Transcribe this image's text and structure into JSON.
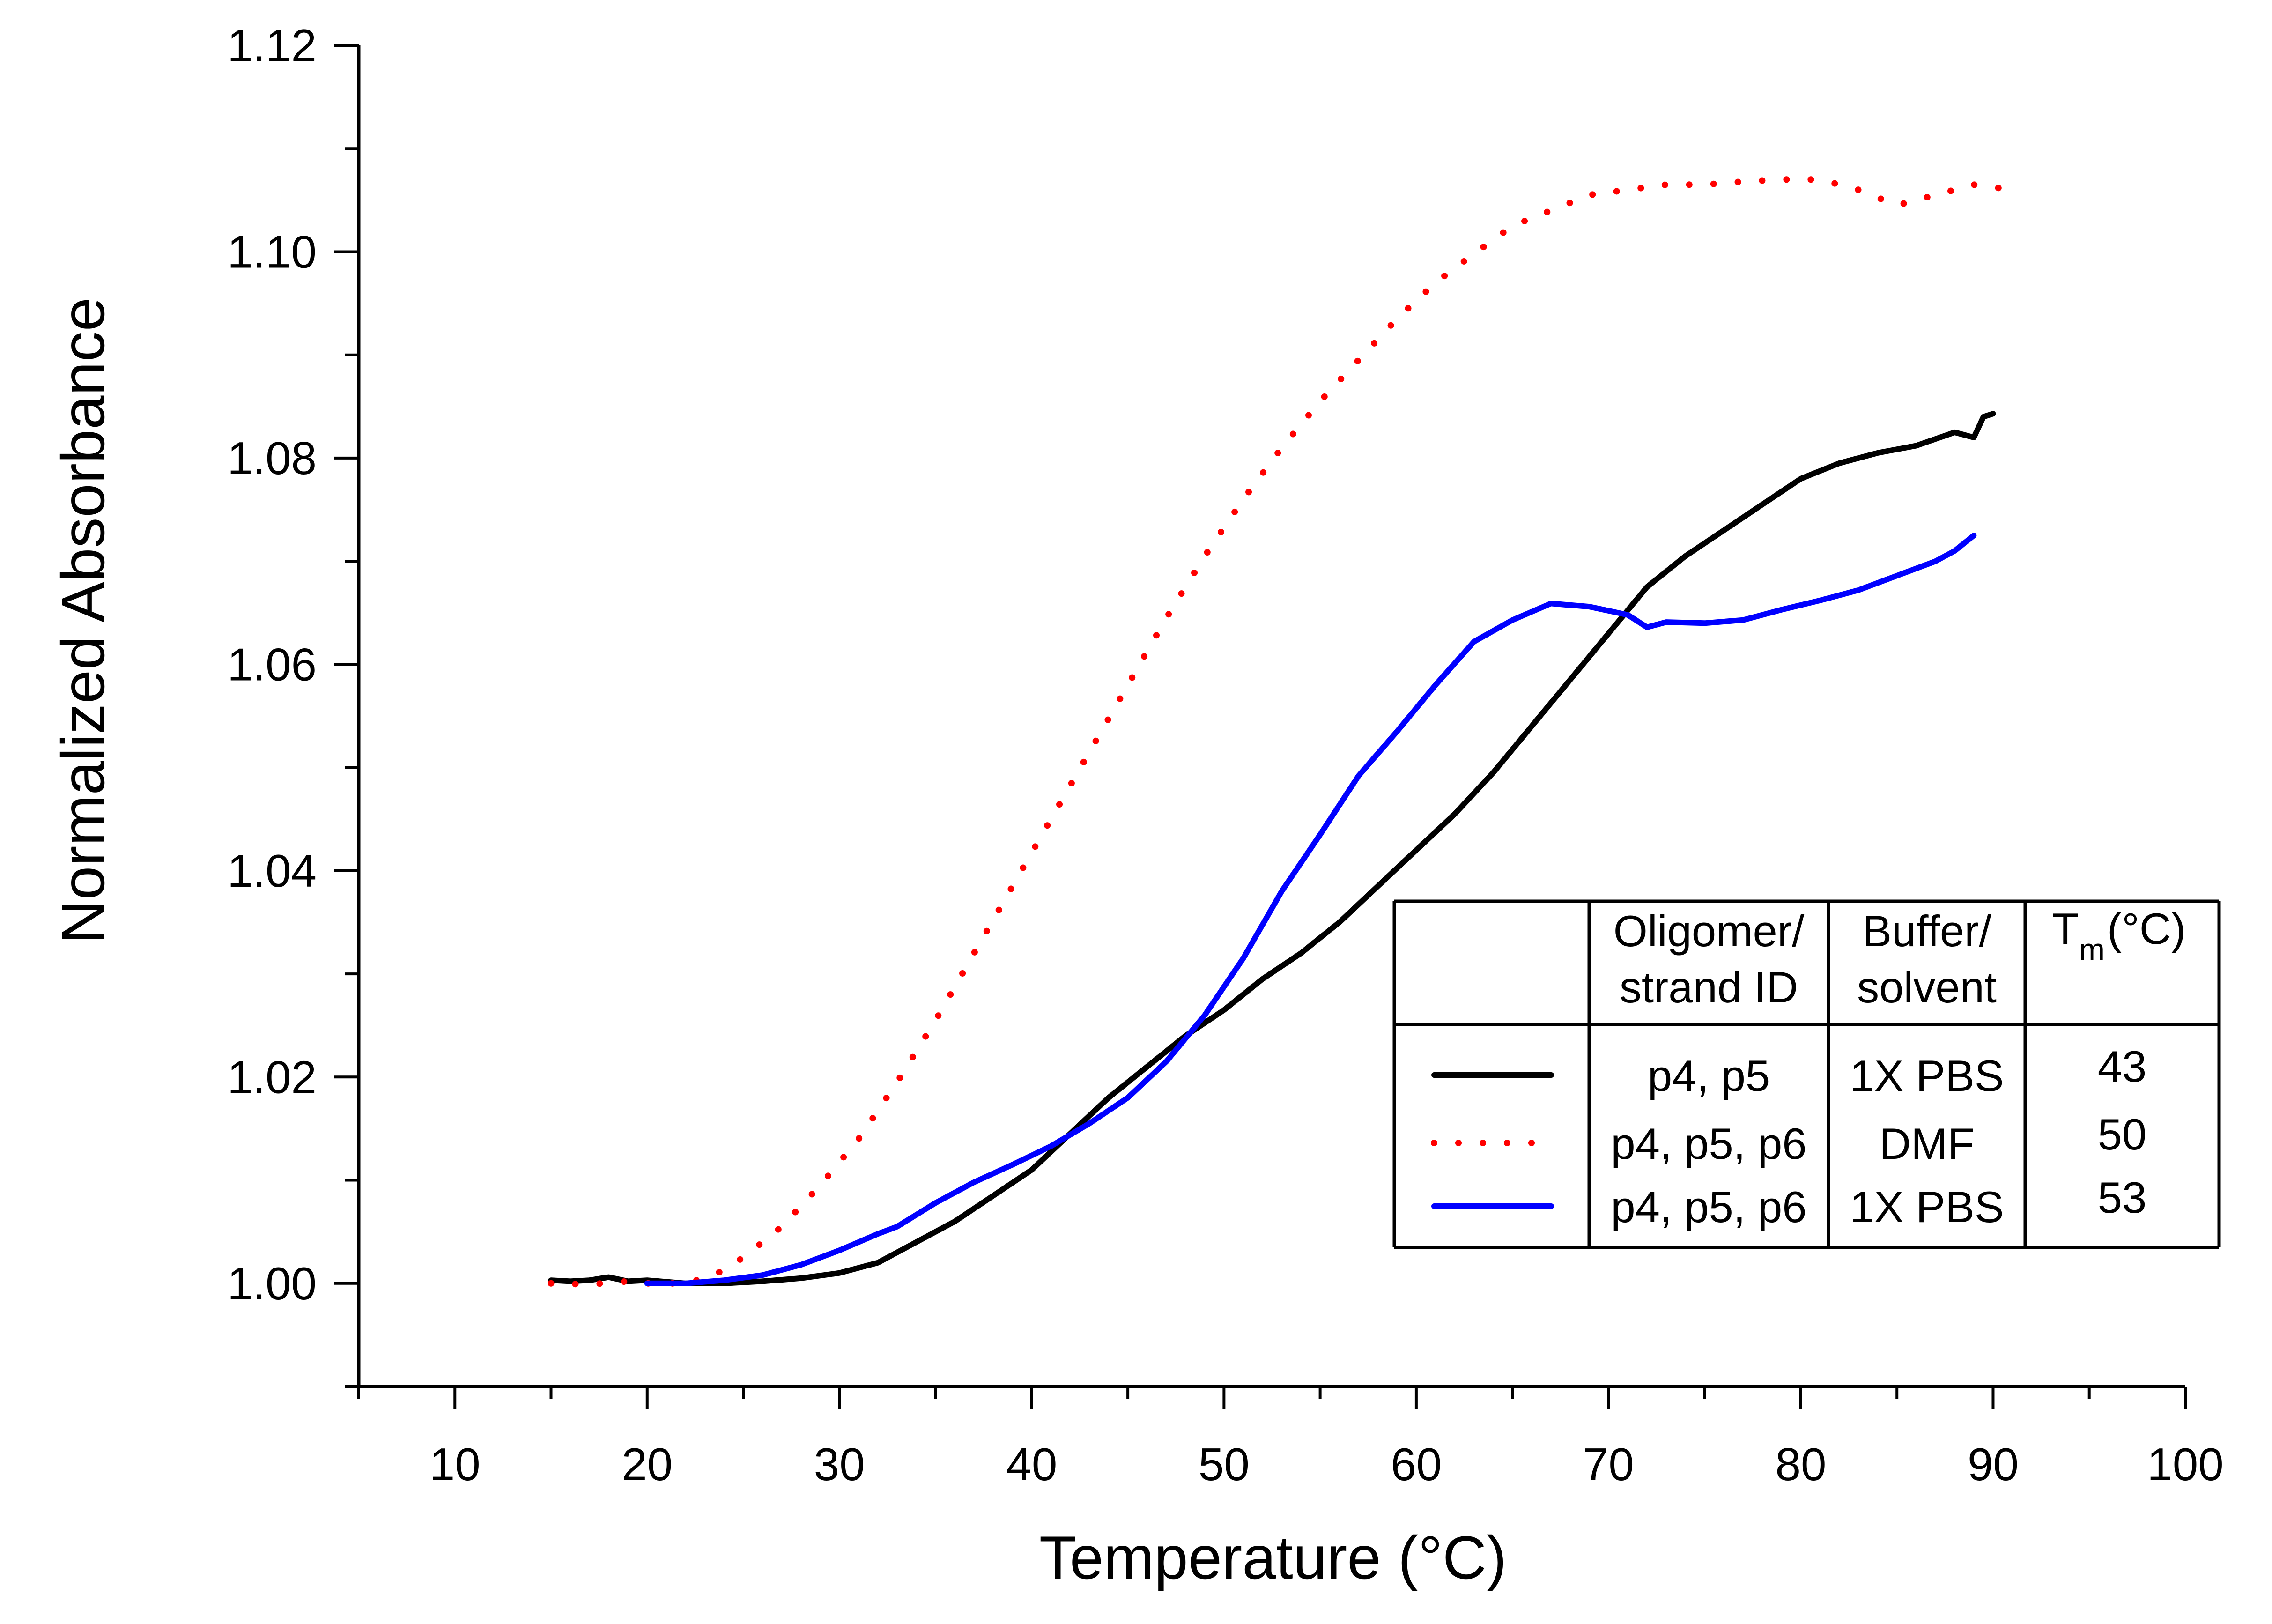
{
  "chart_data": {
    "type": "line",
    "title": "",
    "xlabel": "Temperature (°C)",
    "ylabel": "Normalized Absorbance",
    "xlim": [
      5,
      100
    ],
    "ylim": [
      0.99,
      1.12
    ],
    "x_ticks": [
      10,
      20,
      30,
      40,
      50,
      60,
      70,
      80,
      90,
      100
    ],
    "y_ticks": [
      1.0,
      1.02,
      1.04,
      1.06,
      1.08,
      1.1,
      1.12
    ],
    "x_tick_labels": [
      "10",
      "20",
      "30",
      "40",
      "50",
      "60",
      "70",
      "80",
      "90",
      "100"
    ],
    "y_tick_labels": [
      "1.00",
      "1.02",
      "1.04",
      "1.06",
      "1.08",
      "1.10",
      "1.12"
    ],
    "grid": false,
    "series": [
      {
        "name": "p4, p5 / 1X PBS",
        "color": "#000000",
        "style": "solid",
        "points": [
          [
            15,
            1.0003
          ],
          [
            16,
            1.0002
          ],
          [
            17,
            1.0003
          ],
          [
            18,
            1.0006
          ],
          [
            19,
            1.0002
          ],
          [
            20,
            1.0003
          ],
          [
            22,
            1.0
          ],
          [
            24,
            1.0
          ],
          [
            26,
            1.0002
          ],
          [
            28,
            1.0005
          ],
          [
            30,
            1.001
          ],
          [
            32,
            1.002
          ],
          [
            34,
            1.004
          ],
          [
            36,
            1.006
          ],
          [
            38,
            1.0085
          ],
          [
            40,
            1.011
          ],
          [
            42,
            1.0145
          ],
          [
            44,
            1.018
          ],
          [
            46,
            1.021
          ],
          [
            48,
            1.024
          ],
          [
            50,
            1.0265
          ],
          [
            52,
            1.0295
          ],
          [
            54,
            1.032
          ],
          [
            56,
            1.035
          ],
          [
            58,
            1.0385
          ],
          [
            60,
            1.042
          ],
          [
            62,
            1.0455
          ],
          [
            64,
            1.0495
          ],
          [
            66,
            1.054
          ],
          [
            68,
            1.0585
          ],
          [
            70,
            1.063
          ],
          [
            72,
            1.0675
          ],
          [
            74,
            1.0705
          ],
          [
            76,
            1.073
          ],
          [
            78,
            1.0755
          ],
          [
            80,
            1.078
          ],
          [
            82,
            1.0795
          ],
          [
            84,
            1.0805
          ],
          [
            86,
            1.0812
          ],
          [
            88,
            1.0825
          ],
          [
            89,
            1.082
          ],
          [
            89.5,
            1.084
          ],
          [
            90,
            1.0843
          ]
        ]
      },
      {
        "name": "p4, p5, p6 / DMF",
        "color": "#ff0000",
        "style": "dotted",
        "points": [
          [
            15,
            1.0
          ],
          [
            17,
            0.9999
          ],
          [
            19,
            1.0002
          ],
          [
            20,
            1.0
          ],
          [
            22,
            1.0
          ],
          [
            23.5,
            1.0008
          ],
          [
            25,
            1.0025
          ],
          [
            27,
            1.0055
          ],
          [
            29,
            1.0095
          ],
          [
            31,
            1.014
          ],
          [
            33,
            1.0195
          ],
          [
            35,
            1.0255
          ],
          [
            37,
            1.032
          ],
          [
            39,
            1.0385
          ],
          [
            41,
            1.045
          ],
          [
            43,
            1.0515
          ],
          [
            45,
            1.058
          ],
          [
            47,
            1.0645
          ],
          [
            49,
            1.0705
          ],
          [
            51,
            1.076
          ],
          [
            53,
            1.081
          ],
          [
            55,
            1.0855
          ],
          [
            57,
            1.0895
          ],
          [
            59,
            1.0935
          ],
          [
            61,
            1.097
          ],
          [
            63,
            1.0998
          ],
          [
            65,
            1.1025
          ],
          [
            67,
            1.104
          ],
          [
            69,
            1.1055
          ],
          [
            71,
            1.106
          ],
          [
            73,
            1.1065
          ],
          [
            75,
            1.1065
          ],
          [
            77,
            1.1068
          ],
          [
            79,
            1.107
          ],
          [
            81,
            1.107
          ],
          [
            83,
            1.106
          ],
          [
            85,
            1.1045
          ],
          [
            87,
            1.1055
          ],
          [
            89,
            1.1065
          ],
          [
            91,
            1.106
          ]
        ]
      },
      {
        "name": "p4, p5, p6 / 1X PBS",
        "color": "#0000ff",
        "style": "solid",
        "points": [
          [
            20,
            1.0
          ],
          [
            22,
            1.0
          ],
          [
            24,
            1.0003
          ],
          [
            26,
            1.0008
          ],
          [
            28,
            1.0018
          ],
          [
            30,
            1.0032
          ],
          [
            32,
            1.0048
          ],
          [
            33,
            1.0055
          ],
          [
            35,
            1.0078
          ],
          [
            37,
            1.0098
          ],
          [
            39,
            1.0115
          ],
          [
            41,
            1.0133
          ],
          [
            43,
            1.0155
          ],
          [
            45,
            1.018
          ],
          [
            47,
            1.0215
          ],
          [
            49,
            1.026
          ],
          [
            51,
            1.0315
          ],
          [
            53,
            1.038
          ],
          [
            55,
            1.0435
          ],
          [
            57,
            1.0492
          ],
          [
            59,
            1.0535
          ],
          [
            61,
            1.058
          ],
          [
            63,
            1.0622
          ],
          [
            65,
            1.0643
          ],
          [
            67,
            1.0659
          ],
          [
            69,
            1.0656
          ],
          [
            71,
            1.0648
          ],
          [
            72,
            1.0636
          ],
          [
            73,
            1.0641
          ],
          [
            75,
            1.064
          ],
          [
            77,
            1.0643
          ],
          [
            79,
            1.0653
          ],
          [
            81,
            1.0662
          ],
          [
            83,
            1.0672
          ],
          [
            85,
            1.0686
          ],
          [
            87,
            1.07
          ],
          [
            88,
            1.071
          ],
          [
            89,
            1.0725
          ]
        ]
      }
    ],
    "legend": {
      "placement": "lower-right",
      "headers": {
        "line": "",
        "oligomer_line1": "Oligomer/",
        "oligomer_line2": "strand ID",
        "buffer_line1": "Buffer/",
        "buffer_line2": "solvent",
        "tm_main": "T",
        "tm_sub": "m",
        "tm_unit": "(°C)"
      },
      "rows": [
        {
          "oligomer": "p4, p5",
          "buffer": "1X PBS",
          "tm": "43",
          "color": "#000000",
          "style": "solid"
        },
        {
          "oligomer": "p4, p5, p6",
          "buffer": "DMF",
          "tm": "50",
          "color": "#ff0000",
          "style": "dotted"
        },
        {
          "oligomer": "p4, p5, p6",
          "buffer": "1X PBS",
          "tm": "53",
          "color": "#0000ff",
          "style": "solid"
        }
      ]
    }
  }
}
